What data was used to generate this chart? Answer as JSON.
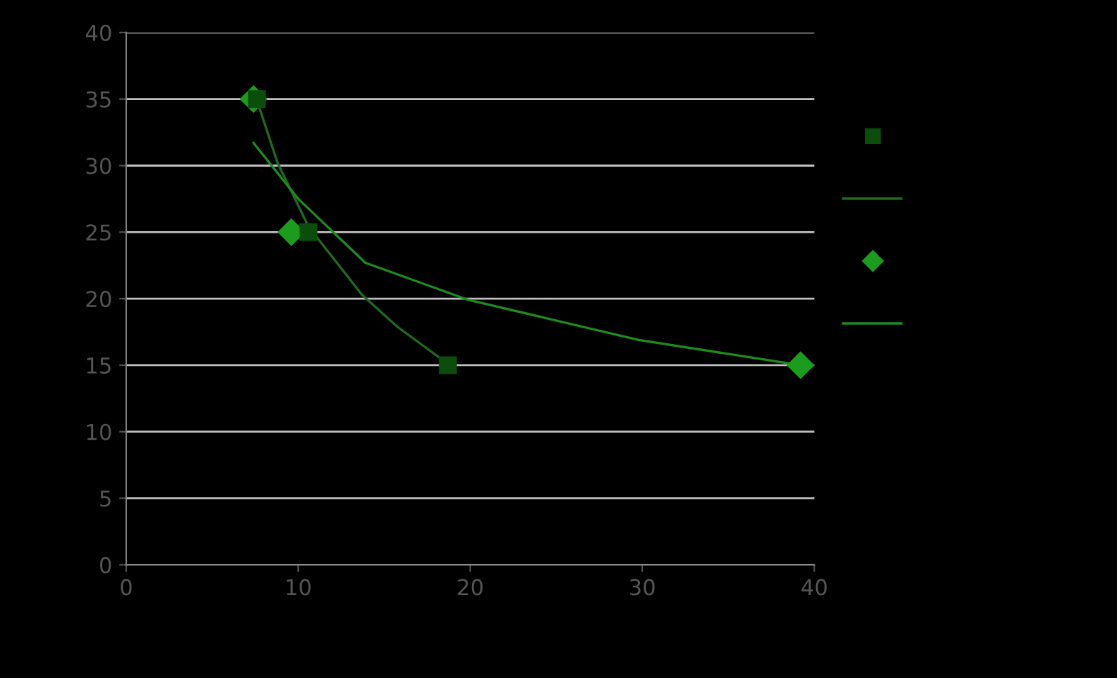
{
  "chart_data": {
    "type": "scatter",
    "xlim": [
      0,
      40
    ],
    "ylim": [
      0,
      40
    ],
    "xticks": [
      0,
      10,
      20,
      30,
      40
    ],
    "yticks": [
      0,
      5,
      10,
      15,
      20,
      25,
      30,
      35,
      40
    ],
    "grid": "y",
    "series": [
      {
        "marker": "square",
        "color": "#0b4d0b",
        "x": [
          7.6,
          10.6,
          18.7
        ],
        "values": [
          35,
          25,
          15
        ]
      },
      {
        "type": "line",
        "color": "#1e6a1e",
        "x": [
          7.6,
          8.8,
          10.6,
          13.7,
          15.75,
          18.7
        ],
        "values": [
          34.9,
          30.2,
          25.4,
          20.3,
          17.9,
          15.1
        ]
      },
      {
        "marker": "diamond",
        "color": "#1c9c1c",
        "x": [
          7.4,
          9.6,
          39.2
        ],
        "values": [
          35,
          25,
          15
        ]
      },
      {
        "type": "line",
        "color": "#1f8a1f",
        "x": [
          7.4,
          10.0,
          13.9,
          19.9,
          29.8,
          39.2
        ],
        "values": [
          31.7,
          27.5,
          22.7,
          19.9,
          16.9,
          15.0
        ]
      }
    ]
  }
}
